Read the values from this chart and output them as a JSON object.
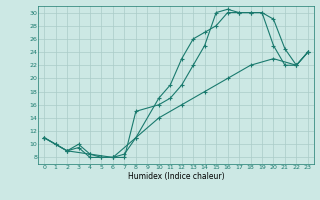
{
  "xlabel": "Humidex (Indice chaleur)",
  "bg_color": "#cce8e4",
  "line_color": "#1a7a6e",
  "grid_color": "#aaccc8",
  "xlim": [
    -0.5,
    23.5
  ],
  "ylim": [
    7,
    31
  ],
  "xticks": [
    0,
    1,
    2,
    3,
    4,
    5,
    6,
    7,
    8,
    9,
    10,
    11,
    12,
    13,
    14,
    15,
    16,
    17,
    18,
    19,
    20,
    21,
    22,
    23
  ],
  "yticks": [
    8,
    10,
    12,
    14,
    16,
    18,
    20,
    22,
    24,
    26,
    28,
    30
  ],
  "line1_x": [
    0,
    1,
    2,
    3,
    4,
    5,
    6,
    7,
    8,
    10,
    11,
    12,
    13,
    14,
    15,
    16,
    17,
    18,
    19,
    20,
    21,
    22,
    23
  ],
  "line1_y": [
    11,
    10,
    9,
    9.5,
    8,
    8,
    8,
    8.5,
    11,
    17,
    19,
    23,
    26,
    27,
    28,
    30,
    30,
    30,
    30,
    29,
    24.5,
    22,
    24
  ],
  "line2_x": [
    0,
    1,
    2,
    3,
    4,
    5,
    6,
    7,
    8,
    10,
    11,
    12,
    13,
    14,
    15,
    16,
    17,
    18,
    19,
    20,
    21,
    22,
    23
  ],
  "line2_y": [
    11,
    10,
    9,
    10,
    8.5,
    8,
    8,
    8,
    15,
    16,
    17,
    19,
    22,
    25,
    30,
    30.5,
    30,
    30,
    30,
    25,
    22,
    22,
    24
  ],
  "line3_x": [
    0,
    2,
    4,
    6,
    8,
    10,
    12,
    14,
    16,
    18,
    20,
    22,
    23
  ],
  "line3_y": [
    11,
    9,
    8.5,
    8,
    11,
    14,
    16,
    18,
    20,
    22,
    23,
    22,
    24
  ]
}
